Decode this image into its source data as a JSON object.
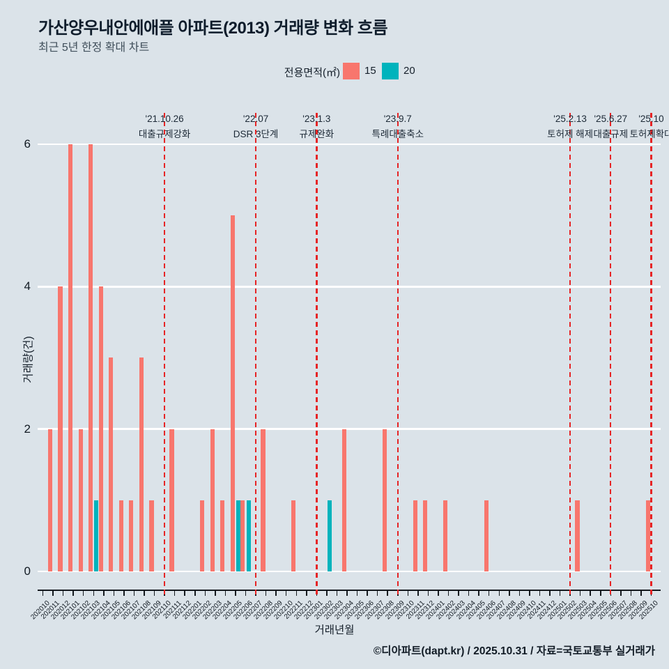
{
  "title": "가산양우내안에애플 아파트(2013) 거래량 변화 흐름",
  "subtitle": "최근 5년 한정 확대 차트",
  "legend": {
    "label": "전용면적(㎡)",
    "items": [
      {
        "label": "15",
        "color": "#F8766D"
      },
      {
        "label": "20",
        "color": "#00B3BC"
      }
    ]
  },
  "colors": {
    "background": "#dbe3e9",
    "gridline": "#ffffff",
    "series_15": "#F8766D",
    "series_20": "#00B3BC",
    "event_line": "#E62425"
  },
  "chart_data": {
    "type": "bar",
    "title": "가산양우내안에애플 아파트(2013) 거래량 변화 흐름",
    "subtitle": "최근 5년 한정 확대 차트",
    "xlabel": "거래년월",
    "ylabel": "거래량(건)",
    "ylim": [
      0,
      6
    ],
    "yticks": [
      0,
      2,
      4,
      6
    ],
    "grid": "horizontal-major-white",
    "legend_position": "top",
    "categories": [
      "202010",
      "202011",
      "202012",
      "202101",
      "202102",
      "202103",
      "202104",
      "202105",
      "202106",
      "202107",
      "202108",
      "202109",
      "202110",
      "202111",
      "202112",
      "202201",
      "202202",
      "202203",
      "202204",
      "202205",
      "202206",
      "202207",
      "202208",
      "202209",
      "202210",
      "202211",
      "202212",
      "202301",
      "202302",
      "202303",
      "202304",
      "202305",
      "202306",
      "202307",
      "202308",
      "202309",
      "202310",
      "202311",
      "202312",
      "202401",
      "202402",
      "202403",
      "202404",
      "202405",
      "202406",
      "202407",
      "202408",
      "202409",
      "202410",
      "202411",
      "202412",
      "202501",
      "202502",
      "202503",
      "202504",
      "202505",
      "202506",
      "202507",
      "202508",
      "202509",
      "202510"
    ],
    "series": [
      {
        "name": "15",
        "color": "#F8766D",
        "values": [
          0,
          2,
          4,
          6,
          2,
          6,
          4,
          3,
          1,
          1,
          3,
          1,
          0,
          2,
          0,
          0,
          1,
          2,
          1,
          5,
          1,
          0,
          2,
          0,
          0,
          1,
          0,
          0,
          0,
          0,
          2,
          0,
          0,
          0,
          2,
          0,
          0,
          1,
          1,
          0,
          1,
          0,
          0,
          0,
          1,
          0,
          0,
          0,
          0,
          0,
          0,
          0,
          0,
          1,
          0,
          0,
          0,
          0,
          0,
          0,
          1
        ]
      },
      {
        "name": "20",
        "color": "#00B3BC",
        "values": [
          0,
          0,
          0,
          0,
          0,
          1,
          0,
          0,
          0,
          0,
          0,
          0,
          0,
          0,
          0,
          0,
          0,
          0,
          0,
          1,
          1,
          0,
          0,
          0,
          0,
          0,
          0,
          0,
          1,
          0,
          0,
          0,
          0,
          0,
          0,
          0,
          0,
          0,
          0,
          0,
          0,
          0,
          0,
          0,
          0,
          0,
          0,
          0,
          0,
          0,
          0,
          0,
          0,
          0,
          0,
          0,
          0,
          0,
          0,
          0,
          0
        ]
      }
    ],
    "events": [
      {
        "date": "'21.10.26",
        "label": "대출규제강화",
        "month": "202110",
        "index": 12,
        "thin": false
      },
      {
        "date": "'22.07",
        "label": "DSR 3단계",
        "month": "202207",
        "index": 21,
        "thin": false
      },
      {
        "date": "'23.1.3",
        "label": "규제완화",
        "month": "202301",
        "index": 27,
        "thin": false
      },
      {
        "date": "'23.9.7",
        "label": "특례대출축소",
        "month": "202309",
        "index": 35,
        "thin": false
      },
      {
        "date": "'25.2.13",
        "label": "토허제 해제",
        "month": "202502",
        "index": 52,
        "thin": true
      },
      {
        "date": "'25.6.27",
        "label": "대출규제",
        "month": "202506",
        "index": 56,
        "thin": false
      },
      {
        "date": "'25.10",
        "label": "토허제확대",
        "month": "202510",
        "index": 60,
        "thin": false
      }
    ]
  },
  "footer": {
    "text": "©디아파트(dapt.kr) / 2025.10.31 / 자료=국토교통부 실거래가"
  }
}
